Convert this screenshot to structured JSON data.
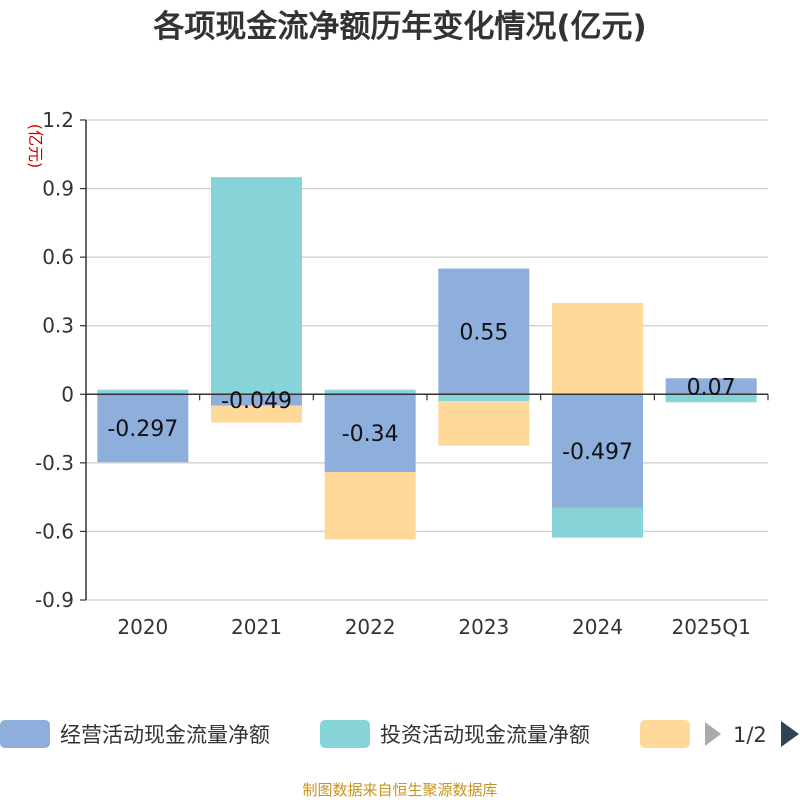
{
  "chart_data": {
    "type": "bar",
    "stacked": true,
    "title": "各项现金流净额历年变化情况(亿元)",
    "unit_label": "(亿元)",
    "categories": [
      "2020",
      "2021",
      "2022",
      "2023",
      "2024",
      "2025Q1"
    ],
    "ylim": [
      -0.9,
      1.2
    ],
    "yticks": [
      1.2,
      0.9,
      0.6,
      0.3,
      0,
      -0.3,
      -0.6,
      -0.9
    ],
    "ytick_labels": [
      "1.2",
      "0.9",
      "0.6",
      "0.3",
      "0",
      "-0.3",
      "-0.6",
      "-0.9"
    ],
    "grid": true,
    "series": [
      {
        "name": "经营活动现金流量净额",
        "color": "#8eaedb",
        "values": [
          -0.297,
          -0.049,
          -0.34,
          0.55,
          -0.497,
          0.07
        ],
        "labels": [
          "-0.297",
          "-0.049",
          "-0.34",
          "0.55",
          "-0.497",
          "0.07"
        ]
      },
      {
        "name": "投资活动现金流量净额",
        "color": "#86d4d8",
        "values": [
          0.02,
          0.95,
          0.02,
          -0.03,
          -0.13,
          -0.035
        ]
      },
      {
        "name": "",
        "color": "#ffd99a",
        "values": [
          0,
          -0.075,
          -0.295,
          -0.195,
          0.4,
          0
        ]
      }
    ],
    "legend": {
      "position": "bottom",
      "page_indicator": "1/2"
    },
    "source": "制图数据来自恒生聚源数据库"
  }
}
